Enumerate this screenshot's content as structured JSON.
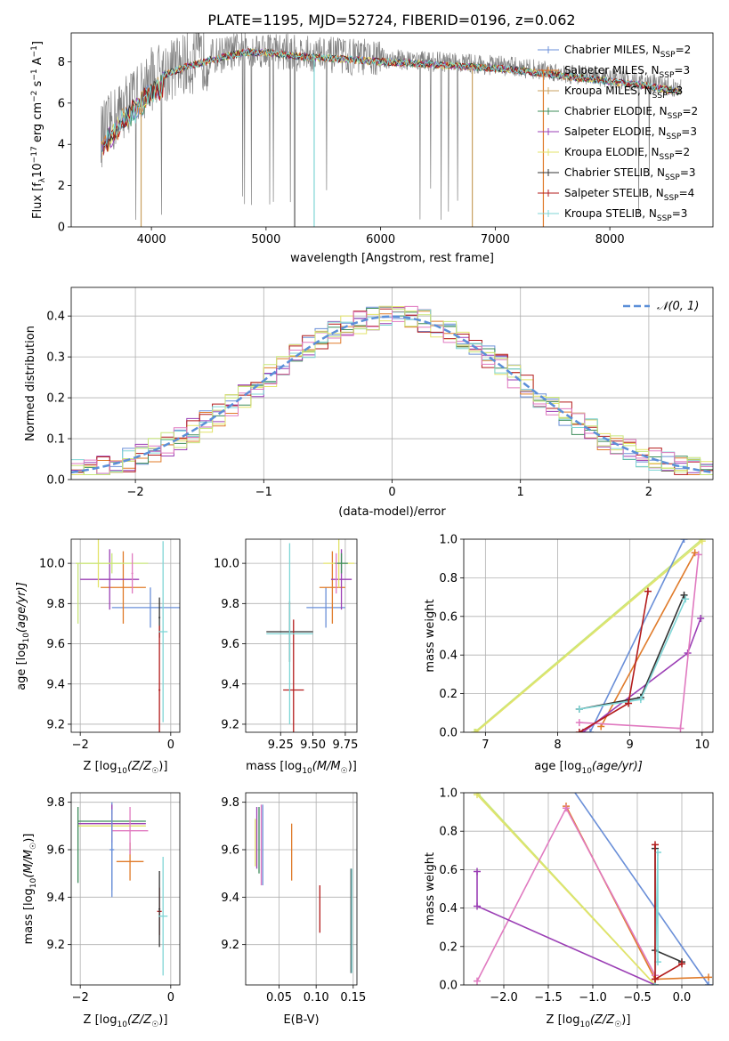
{
  "title": "PLATE=1195, MJD=52724, FIBERID=0196, z=0.062",
  "colors": {
    "Chabrier MILES": "#6a8fd8",
    "Salpeter MILES": "#e07b2a",
    "Kroupa MILES": "#c8a060",
    "Chabrier ELODIE": "#3d8c5a",
    "Salpeter ELODIE": "#9b3fb5",
    "Kroupa ELODIE": "#e3e36a",
    "Chabrier STELIB": "#333333",
    "Salpeter STELIB": "#b31b1b",
    "Kroupa STELIB": "#7fd6d6",
    "pink": "#e07ac0",
    "lime": "#c8e67a",
    "gauss": "#5b8fd8"
  },
  "chart_data": [
    {
      "id": "spectrum",
      "type": "line",
      "xlabel": "wavelength [Angstrom, rest frame]",
      "ylabel_main": "Flux [f",
      "ylabel_sub": "λ",
      "ylabel_mid": "10",
      "ylabel_sup": "−17",
      "ylabel_tail": " erg cm",
      "ylabel_sup2": "−2",
      "ylabel_tail2": " s",
      "ylabel_sup3": "−1",
      "ylabel_tail3": " A",
      "ylabel_sup4": "−1",
      "ylabel_end": "]",
      "xlim": [
        3300,
        8900
      ],
      "ylim": [
        0,
        9.4
      ],
      "xticks": [
        4000,
        5000,
        6000,
        7000,
        8000
      ],
      "yticks": [
        0,
        2,
        4,
        6,
        8
      ],
      "legend": [
        {
          "name": "Chabrier MILES",
          "sub": "SSP",
          "n": "2",
          "color": "#6a8fd8"
        },
        {
          "name": "Salpeter MILES",
          "sub": "SSP",
          "n": "3",
          "color": "#e07b2a"
        },
        {
          "name": "Kroupa MILES",
          "sub": "SSP",
          "n": "3",
          "color": "#c8a060"
        },
        {
          "name": "Chabrier ELODIE",
          "sub": "SSP",
          "n": "2",
          "color": "#3d8c5a"
        },
        {
          "name": "Salpeter ELODIE",
          "sub": "SSP",
          "n": "3",
          "color": "#9b3fb5"
        },
        {
          "name": "Kroupa ELODIE",
          "sub": "SSP",
          "n": "2",
          "color": "#e3e36a"
        },
        {
          "name": "Chabrier STELIB",
          "sub": "SSP",
          "n": "3",
          "color": "#333333"
        },
        {
          "name": "Salpeter STELIB",
          "sub": "SSP",
          "n": "4",
          "color": "#b31b1b"
        },
        {
          "name": "Kroupa STELIB",
          "sub": "SSP",
          "n": "3",
          "color": "#7fd6d6"
        }
      ],
      "continuum": [
        [
          3560,
          4.4
        ],
        [
          3650,
          5.0
        ],
        [
          3750,
          5.8
        ],
        [
          3900,
          6.5
        ],
        [
          4000,
          7.2
        ],
        [
          4150,
          7.6
        ],
        [
          4300,
          7.9
        ],
        [
          4500,
          8.2
        ],
        [
          4800,
          8.6
        ],
        [
          5000,
          8.6
        ],
        [
          5300,
          8.4
        ],
        [
          5600,
          8.3
        ],
        [
          5900,
          8.2
        ],
        [
          6200,
          8.1
        ],
        [
          6500,
          8.0
        ],
        [
          6800,
          7.9
        ],
        [
          7100,
          7.8
        ],
        [
          7400,
          7.6
        ],
        [
          7700,
          7.4
        ],
        [
          8000,
          7.2
        ],
        [
          8300,
          7.0
        ],
        [
          8600,
          6.7
        ]
      ]
    },
    {
      "id": "histogram",
      "type": "step",
      "xlabel": "(data-model)/error",
      "ylabel": "Normed distribution",
      "xlim": [
        -2.5,
        2.5
      ],
      "ylim": [
        0,
        0.47
      ],
      "xticks": [
        -2,
        -1,
        0,
        1,
        2
      ],
      "yticks": [
        0.0,
        0.1,
        0.2,
        0.3,
        0.4
      ],
      "legend": "𝒩(0, 1)",
      "legend_location": "upper right"
    },
    {
      "id": "age_vs_Z",
      "type": "errorbar",
      "xlabel": "Z [log",
      "xlabel_sub": "10",
      "xlabel_tail": "(Z/Z",
      "xlabel_sub2": "☉",
      "xlabel_end": ")]",
      "ylabel": "age  [log",
      "ylabel_sub": "10",
      "ylabel_end": "(age/yr)]",
      "xlim": [
        -2.2,
        0.2
      ],
      "ylim": [
        9.16,
        10.12
      ],
      "xticks": [
        -2,
        0
      ],
      "yticks": [
        9.2,
        9.4,
        9.6,
        9.8,
        10.0
      ],
      "points": [
        {
          "x": -0.45,
          "xerr": 0.85,
          "y": 9.78,
          "yerr": 0.1,
          "color": "#6a8fd8"
        },
        {
          "x": -1.05,
          "xerr": 0.5,
          "y": 9.88,
          "yerr": 0.18,
          "color": "#e07b2a"
        },
        {
          "x": -1.35,
          "xerr": 0.65,
          "y": 9.92,
          "yerr": 0.15,
          "color": "#9b3fb5"
        },
        {
          "x": -1.6,
          "xerr": 0.5,
          "y": 10.0,
          "yerr": 0.12,
          "color": "#e3e36a"
        },
        {
          "x": -1.3,
          "xerr": 0.8,
          "y": 10.0,
          "yerr": 0.05,
          "color": "#c8e67a"
        },
        {
          "x": -0.25,
          "xerr": 0.02,
          "y": 9.73,
          "yerr": 0.1,
          "color": "#333333"
        },
        {
          "x": -0.25,
          "xerr": 0.02,
          "y": 9.37,
          "yerr": 0.32,
          "color": "#b31b1b"
        },
        {
          "x": -0.17,
          "xerr": 0.1,
          "y": 9.66,
          "yerr": 0.45,
          "color": "#7fd6d6"
        },
        {
          "x": -0.85,
          "xerr": 0.02,
          "y": 9.95,
          "yerr": 0.1,
          "color": "#e07ac0"
        },
        {
          "x": -2.05,
          "xerr": 0.0,
          "y": 9.85,
          "yerr": 0.15,
          "color": "#c8e67a"
        }
      ]
    },
    {
      "id": "age_vs_mass",
      "type": "errorbar",
      "xlabel": "mass [log",
      "xlabel_sub": "10",
      "xlabel_tail": "(M/M",
      "xlabel_sub2": "☉",
      "xlabel_end": ")]",
      "xlim": [
        8.98,
        9.84
      ],
      "ylim": [
        9.16,
        10.12
      ],
      "xticks": [
        9.25,
        9.5,
        9.75
      ],
      "xtick_labels": [
        "9.25",
        "9.50",
        "9.75"
      ],
      "yticks": [
        9.2,
        9.4,
        9.6,
        9.8,
        10.0
      ],
      "points": [
        {
          "x": 9.6,
          "xerr": 0.15,
          "y": 9.78,
          "yerr": 0.1,
          "color": "#6a8fd8"
        },
        {
          "x": 9.65,
          "xerr": 0.1,
          "y": 9.88,
          "yerr": 0.18,
          "color": "#e07b2a"
        },
        {
          "x": 9.72,
          "xerr": 0.08,
          "y": 9.92,
          "yerr": 0.15,
          "color": "#9b3fb5"
        },
        {
          "x": 9.7,
          "xerr": 0.12,
          "y": 10.0,
          "yerr": 0.12,
          "color": "#e3e36a"
        },
        {
          "x": 9.72,
          "xerr": 0.05,
          "y": 10.0,
          "yerr": 0.05,
          "color": "#3d8c5a"
        },
        {
          "x": 9.32,
          "xerr": 0.18,
          "y": 9.66,
          "yerr": 0.15,
          "color": "#333333"
        },
        {
          "x": 9.35,
          "xerr": 0.08,
          "y": 9.37,
          "yerr": 0.35,
          "color": "#b31b1b"
        },
        {
          "x": 9.32,
          "xerr": 0.18,
          "y": 9.65,
          "yerr": 0.45,
          "color": "#7fd6d6"
        },
        {
          "x": 9.68,
          "xerr": 0.0,
          "y": 9.95,
          "yerr": 0.1,
          "color": "#e07ac0"
        }
      ]
    },
    {
      "id": "massweight_vs_age",
      "type": "line",
      "xlabel": "age  [log",
      "xlabel_sub": "10",
      "xlabel_end": "(age/yr)]",
      "ylabel": "mass weight",
      "xlim": [
        6.7,
        10.15
      ],
      "ylim": [
        0,
        1.0
      ],
      "xticks": [
        7,
        8,
        9,
        10
      ],
      "yticks": [
        0.0,
        0.2,
        0.4,
        0.6,
        0.8,
        1.0
      ],
      "series": [
        {
          "color": "#c8e67a",
          "x": [
            6.85,
            10.0
          ],
          "y": [
            0.0,
            1.0
          ]
        },
        {
          "color": "#e3e36a",
          "x": [
            6.87,
            10.0
          ],
          "y": [
            0.0,
            0.99
          ]
        },
        {
          "color": "#6a8fd8",
          "x": [
            8.45,
            9.75
          ],
          "y": [
            0.0,
            1.0
          ]
        },
        {
          "color": "#e07b2a",
          "x": [
            8.6,
            9.9
          ],
          "y": [
            0.03,
            0.93
          ]
        },
        {
          "color": "#9b3fb5",
          "x": [
            8.35,
            9.8,
            9.98
          ],
          "y": [
            0.0,
            0.41,
            0.59
          ]
        },
        {
          "color": "#e07ac0",
          "x": [
            8.3,
            9.7,
            9.95
          ],
          "y": [
            0.05,
            0.02,
            0.92
          ]
        },
        {
          "color": "#333333",
          "x": [
            8.3,
            9.15,
            9.75
          ],
          "y": [
            0.12,
            0.18,
            0.71
          ]
        },
        {
          "color": "#7fd6d6",
          "x": [
            8.3,
            9.15,
            9.77
          ],
          "y": [
            0.12,
            0.17,
            0.69
          ]
        },
        {
          "color": "#b31b1b",
          "x": [
            8.3,
            8.98,
            9.25
          ],
          "y": [
            0.0,
            0.15,
            0.73
          ]
        }
      ]
    },
    {
      "id": "mass_vs_Z",
      "type": "errorbar",
      "xlabel": "Z [log",
      "xlabel_sub": "10",
      "xlabel_tail": "(Z/Z",
      "xlabel_sub2": "☉",
      "xlabel_end": ")]",
      "ylabel": "mass [log",
      "ylabel_sub": "10",
      "ylabel_tail": "(M/M",
      "ylabel_sub2": "☉",
      "ylabel_end": ")]",
      "xlim": [
        -2.2,
        0.2
      ],
      "ylim": [
        9.03,
        9.84
      ],
      "xticks": [
        -2,
        0
      ],
      "yticks": [
        9.2,
        9.4,
        9.6,
        9.8
      ],
      "points": [
        {
          "x": -1.3,
          "xerr": 0.05,
          "y": 9.6,
          "yerr": 0.2,
          "color": "#6a8fd8"
        },
        {
          "x": -0.9,
          "xerr": 0.3,
          "y": 9.55,
          "yerr": 0.08,
          "color": "#e07b2a"
        },
        {
          "x": -1.3,
          "xerr": 0.75,
          "y": 9.72,
          "yerr": 0.05,
          "color": "#3d8c5a"
        },
        {
          "x": -1.3,
          "xerr": 0.75,
          "y": 9.7,
          "yerr": 0.05,
          "color": "#e3e36a"
        },
        {
          "x": -1.3,
          "xerr": 0.75,
          "y": 9.71,
          "yerr": 0.08,
          "color": "#9b3fb5"
        },
        {
          "x": -0.9,
          "xerr": 0.4,
          "y": 9.68,
          "yerr": 0.1,
          "color": "#e07ac0"
        },
        {
          "x": -0.25,
          "xerr": 0.05,
          "y": 9.34,
          "yerr": 0.1,
          "color": "#b31b1b"
        },
        {
          "x": -0.25,
          "xerr": 0.02,
          "y": 9.35,
          "yerr": 0.16,
          "color": "#333333"
        },
        {
          "x": -0.17,
          "xerr": 0.1,
          "y": 9.32,
          "yerr": 0.25,
          "color": "#7fd6d6"
        },
        {
          "x": -1.3,
          "xerr": 0.02,
          "y": 9.6,
          "yerr": 0.17,
          "color": "#6a8fd8"
        },
        {
          "x": -2.05,
          "xerr": 0.0,
          "y": 9.62,
          "yerr": 0.16,
          "color": "#3d8c5a"
        }
      ]
    },
    {
      "id": "mass_vs_ebv",
      "type": "errorbar",
      "xlabel": "E(B-V)",
      "xlim": [
        0.005,
        0.155
      ],
      "ylim": [
        9.03,
        9.84
      ],
      "xticks": [
        0.05,
        0.1,
        0.15
      ],
      "xtick_labels": [
        "0.05",
        "0.10",
        "0.15"
      ],
      "yticks": [
        9.2,
        9.4,
        9.6,
        9.8
      ],
      "points": [
        {
          "x": 0.018,
          "y": 9.63,
          "yerr": 0.1,
          "color": "#e3e36a"
        },
        {
          "x": 0.02,
          "y": 9.65,
          "yerr": 0.13,
          "color": "#9b3fb5"
        },
        {
          "x": 0.023,
          "y": 9.64,
          "yerr": 0.14,
          "color": "#3d8c5a"
        },
        {
          "x": 0.026,
          "y": 9.62,
          "yerr": 0.17,
          "color": "#e07ac0"
        },
        {
          "x": 0.028,
          "y": 9.62,
          "yerr": 0.17,
          "color": "#6a8fd8"
        },
        {
          "x": 0.067,
          "y": 9.59,
          "yerr": 0.12,
          "color": "#e07b2a"
        },
        {
          "x": 0.105,
          "y": 9.35,
          "yerr": 0.1,
          "color": "#b31b1b"
        },
        {
          "x": 0.147,
          "y": 9.3,
          "yerr": 0.22,
          "color": "#333333"
        },
        {
          "x": 0.148,
          "y": 9.3,
          "yerr": 0.22,
          "color": "#7fd6d6"
        }
      ]
    },
    {
      "id": "massweight_vs_Z",
      "type": "line",
      "xlabel": "Z [log",
      "xlabel_sub": "10",
      "xlabel_tail": "(Z/Z",
      "xlabel_sub2": "☉",
      "xlabel_end": ")]",
      "ylabel": "mass weight",
      "xlim": [
        -2.45,
        0.35
      ],
      "ylim": [
        0,
        1.0
      ],
      "xticks": [
        -2.0,
        -1.5,
        -1.0,
        -0.5,
        0.0
      ],
      "xtick_labels": [
        "−2.0",
        "−1.5",
        "−1.0",
        "−0.5",
        "0.0"
      ],
      "yticks": [
        0.0,
        0.2,
        0.4,
        0.6,
        0.8,
        1.0
      ],
      "series": [
        {
          "color": "#c8e67a",
          "x": [
            -2.3,
            -0.3
          ],
          "y": [
            1.0,
            0.0
          ]
        },
        {
          "color": "#e3e36a",
          "x": [
            -2.3,
            -0.3
          ],
          "y": [
            0.99,
            0.0
          ]
        },
        {
          "color": "#6a8fd8",
          "x": [
            -1.35,
            0.3
          ],
          "y": [
            1.1,
            0.0
          ]
        },
        {
          "color": "#e07b2a",
          "x": [
            -1.3,
            -0.3,
            0.3
          ],
          "y": [
            0.93,
            0.03,
            0.04
          ]
        },
        {
          "color": "#e07ac0",
          "x": [
            -2.3,
            -1.3,
            -0.3
          ],
          "y": [
            0.02,
            0.92,
            0.05
          ]
        },
        {
          "color": "#9b3fb5",
          "x": [
            -2.3,
            -2.3,
            -0.3
          ],
          "y": [
            0.59,
            0.41,
            0.0
          ]
        },
        {
          "color": "#333333",
          "x": [
            -0.3,
            -0.3,
            0.0
          ],
          "y": [
            0.71,
            0.18,
            0.12
          ]
        },
        {
          "color": "#7fd6d6",
          "x": [
            -0.3,
            -0.27,
            -0.27
          ],
          "y": [
            0.0,
            0.69,
            0.12
          ]
        },
        {
          "color": "#b31b1b",
          "x": [
            -0.3,
            -0.3,
            -0.3,
            0.0
          ],
          "y": [
            0.73,
            0.03,
            0.03,
            0.11
          ]
        }
      ]
    }
  ]
}
